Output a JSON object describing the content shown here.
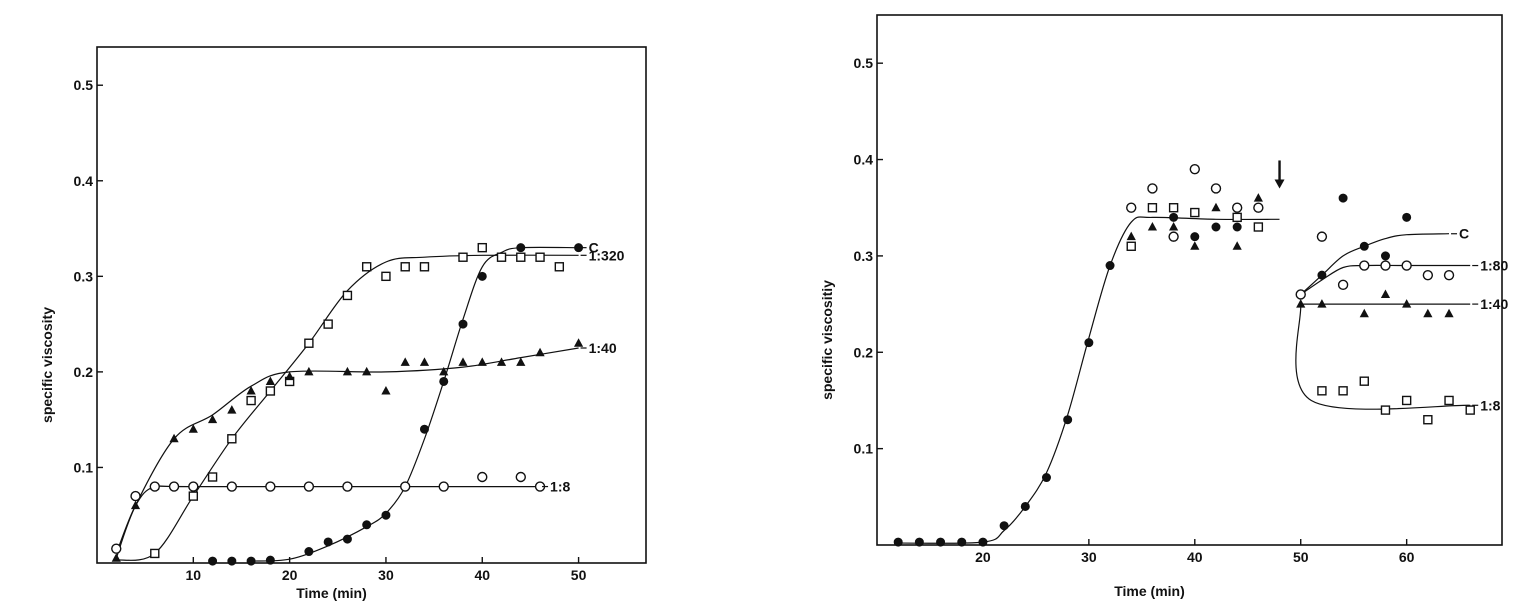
{
  "chart_data": [
    {
      "type": "scatter",
      "title": "",
      "xlabel": "Time (min)",
      "ylabel": "specific viscosity",
      "xlim": [
        0,
        57
      ],
      "ylim": [
        0,
        0.54
      ],
      "xticks": [
        10,
        20,
        30,
        40,
        50
      ],
      "xtick_labels": [
        "10",
        "20",
        "30",
        "40",
        "50"
      ],
      "yticks": [
        0.1,
        0.2,
        0.3,
        0.4,
        0.5
      ],
      "ytick_labels": [
        "0.1",
        "0.2",
        "0.3",
        "0.4",
        "0.5"
      ],
      "grid": false,
      "legend": "none",
      "series": [
        {
          "name": "C",
          "marker": "filled-circle",
          "points": [
            [
              12,
              0.002
            ],
            [
              14,
              0.002
            ],
            [
              16,
              0.002
            ],
            [
              18,
              0.003
            ],
            [
              22,
              0.012
            ],
            [
              24,
              0.022
            ],
            [
              26,
              0.025
            ],
            [
              28,
              0.04
            ],
            [
              30,
              0.05
            ],
            [
              32,
              0.08
            ],
            [
              34,
              0.14
            ],
            [
              36,
              0.19
            ],
            [
              38,
              0.25
            ],
            [
              40,
              0.3
            ],
            [
              44,
              0.33
            ],
            [
              50,
              0.33
            ]
          ],
          "curve": [
            [
              16,
              0.002
            ],
            [
              20,
              0.004
            ],
            [
              24,
              0.018
            ],
            [
              28,
              0.038
            ],
            [
              30,
              0.052
            ],
            [
              32,
              0.08
            ],
            [
              34,
              0.13
            ],
            [
              36,
              0.19
            ],
            [
              38,
              0.255
            ],
            [
              40,
              0.31
            ],
            [
              42,
              0.325
            ],
            [
              44,
              0.33
            ],
            [
              50,
              0.33
            ]
          ]
        },
        {
          "name": "1:320",
          "marker": "open-square",
          "points": [
            [
              6,
              0.01
            ],
            [
              10,
              0.07
            ],
            [
              12,
              0.09
            ],
            [
              14,
              0.13
            ],
            [
              16,
              0.17
            ],
            [
              18,
              0.18
            ],
            [
              20,
              0.19
            ],
            [
              22,
              0.23
            ],
            [
              24,
              0.25
            ],
            [
              26,
              0.28
            ],
            [
              28,
              0.31
            ],
            [
              30,
              0.3
            ],
            [
              32,
              0.31
            ],
            [
              34,
              0.31
            ],
            [
              38,
              0.32
            ],
            [
              40,
              0.33
            ],
            [
              42,
              0.32
            ],
            [
              44,
              0.32
            ],
            [
              46,
              0.32
            ],
            [
              48,
              0.31
            ]
          ],
          "curve": [
            [
              2,
              0.003
            ],
            [
              6,
              0.01
            ],
            [
              10,
              0.07
            ],
            [
              14,
              0.13
            ],
            [
              18,
              0.18
            ],
            [
              22,
              0.23
            ],
            [
              26,
              0.285
            ],
            [
              30,
              0.315
            ],
            [
              34,
              0.32
            ],
            [
              40,
              0.322
            ],
            [
              50,
              0.322
            ]
          ]
        },
        {
          "name": "1:40",
          "marker": "filled-triangle",
          "points": [
            [
              2,
              0.005
            ],
            [
              4,
              0.06
            ],
            [
              6,
              0.08
            ],
            [
              8,
              0.13
            ],
            [
              10,
              0.14
            ],
            [
              12,
              0.15
            ],
            [
              14,
              0.16
            ],
            [
              16,
              0.18
            ],
            [
              18,
              0.19
            ],
            [
              20,
              0.195
            ],
            [
              22,
              0.2
            ],
            [
              26,
              0.2
            ],
            [
              28,
              0.2
            ],
            [
              30,
              0.18
            ],
            [
              32,
              0.21
            ],
            [
              34,
              0.21
            ],
            [
              36,
              0.2
            ],
            [
              38,
              0.21
            ],
            [
              40,
              0.21
            ],
            [
              42,
              0.21
            ],
            [
              44,
              0.21
            ],
            [
              46,
              0.22
            ],
            [
              50,
              0.23
            ]
          ],
          "curve": [
            [
              2,
              0.005
            ],
            [
              4,
              0.06
            ],
            [
              8,
              0.13
            ],
            [
              12,
              0.155
            ],
            [
              16,
              0.185
            ],
            [
              20,
              0.2
            ],
            [
              30,
              0.2
            ],
            [
              38,
              0.205
            ],
            [
              44,
              0.215
            ],
            [
              50,
              0.225
            ]
          ]
        },
        {
          "name": "1:8",
          "marker": "open-circle",
          "points": [
            [
              2,
              0.015
            ],
            [
              4,
              0.07
            ],
            [
              6,
              0.08
            ],
            [
              8,
              0.08
            ],
            [
              10,
              0.08
            ],
            [
              14,
              0.08
            ],
            [
              18,
              0.08
            ],
            [
              22,
              0.08
            ],
            [
              26,
              0.08
            ],
            [
              32,
              0.08
            ],
            [
              36,
              0.08
            ],
            [
              40,
              0.09
            ],
            [
              44,
              0.09
            ],
            [
              46,
              0.08
            ]
          ],
          "curve": [
            [
              2,
              0.01
            ],
            [
              4,
              0.06
            ],
            [
              6,
              0.08
            ],
            [
              10,
              0.08
            ],
            [
              46,
              0.08
            ]
          ]
        }
      ]
    },
    {
      "type": "scatter",
      "title": "",
      "xlabel": "Time (min)",
      "ylabel": "specific viscositiy",
      "xlim": [
        10,
        69
      ],
      "ylim": [
        0,
        0.55
      ],
      "xticks": [
        20,
        30,
        40,
        50,
        60
      ],
      "xtick_labels": [
        "20",
        "30",
        "40",
        "50",
        "60"
      ],
      "yticks": [
        0.1,
        0.2,
        0.3,
        0.4,
        0.5
      ],
      "ytick_labels": [
        "0.1",
        "0.2",
        "0.3",
        "0.4",
        "0.5"
      ],
      "grid": false,
      "legend": "none",
      "annotations": [
        {
          "type": "arrow-down",
          "x": 48,
          "y": 0.37
        }
      ],
      "series": [
        {
          "name": "",
          "marker": "filled-circle",
          "points": [
            [
              12,
              0.003
            ],
            [
              14,
              0.003
            ],
            [
              16,
              0.003
            ],
            [
              18,
              0.003
            ],
            [
              20,
              0.003
            ],
            [
              22,
              0.02
            ],
            [
              24,
              0.04
            ],
            [
              26,
              0.07
            ],
            [
              28,
              0.13
            ],
            [
              30,
              0.21
            ],
            [
              32,
              0.29
            ],
            [
              38,
              0.34
            ],
            [
              40,
              0.32
            ],
            [
              42,
              0.33
            ],
            [
              44,
              0.33
            ]
          ],
          "curve": [
            [
              12,
              0.002
            ],
            [
              20,
              0.003
            ],
            [
              22,
              0.015
            ],
            [
              24,
              0.04
            ],
            [
              26,
              0.075
            ],
            [
              28,
              0.135
            ],
            [
              30,
              0.215
            ],
            [
              32,
              0.29
            ],
            [
              34,
              0.335
            ],
            [
              36,
              0.34
            ],
            [
              42,
              0.338
            ],
            [
              48,
              0.338
            ]
          ]
        },
        {
          "name": "",
          "marker": "open-circle",
          "points": [
            [
              34,
              0.35
            ],
            [
              36,
              0.37
            ],
            [
              38,
              0.32
            ],
            [
              40,
              0.39
            ],
            [
              42,
              0.37
            ],
            [
              44,
              0.35
            ],
            [
              46,
              0.35
            ]
          ],
          "curve": []
        },
        {
          "name": "",
          "marker": "open-square",
          "points": [
            [
              34,
              0.31
            ],
            [
              36,
              0.35
            ],
            [
              38,
              0.35
            ],
            [
              40,
              0.345
            ],
            [
              44,
              0.34
            ],
            [
              46,
              0.33
            ]
          ],
          "curve": []
        },
        {
          "name": "",
          "marker": "filled-triangle",
          "points": [
            [
              34,
              0.32
            ],
            [
              36,
              0.33
            ],
            [
              38,
              0.33
            ],
            [
              40,
              0.31
            ],
            [
              42,
              0.35
            ],
            [
              44,
              0.31
            ],
            [
              46,
              0.36
            ]
          ],
          "curve": []
        },
        {
          "name": "C",
          "marker": "filled-circle",
          "points": [
            [
              50,
              0.26
            ],
            [
              52,
              0.28
            ],
            [
              54,
              0.36
            ],
            [
              56,
              0.31
            ],
            [
              58,
              0.3
            ],
            [
              60,
              0.34
            ]
          ],
          "curve": [
            [
              50,
              0.26
            ],
            [
              52,
              0.28
            ],
            [
              54,
              0.3
            ],
            [
              56,
              0.31
            ],
            [
              58,
              0.318
            ],
            [
              60,
              0.322
            ],
            [
              64,
              0.323
            ]
          ]
        },
        {
          "name": "1:80",
          "marker": "open-circle",
          "points": [
            [
              50,
              0.26
            ],
            [
              52,
              0.32
            ],
            [
              54,
              0.27
            ],
            [
              56,
              0.29
            ],
            [
              58,
              0.29
            ],
            [
              60,
              0.29
            ],
            [
              62,
              0.28
            ],
            [
              64,
              0.28
            ]
          ],
          "curve": [
            [
              50,
              0.26
            ],
            [
              52,
              0.275
            ],
            [
              54,
              0.288
            ],
            [
              56,
              0.29
            ],
            [
              60,
              0.29
            ],
            [
              66,
              0.29
            ]
          ]
        },
        {
          "name": "1:40",
          "marker": "filled-triangle",
          "points": [
            [
              50,
              0.25
            ],
            [
              52,
              0.25
            ],
            [
              56,
              0.24
            ],
            [
              58,
              0.26
            ],
            [
              60,
              0.25
            ],
            [
              62,
              0.24
            ],
            [
              64,
              0.24
            ]
          ],
          "curve": [
            [
              50,
              0.25
            ],
            [
              52,
              0.25
            ],
            [
              66,
              0.25
            ]
          ]
        },
        {
          "name": "1:8",
          "marker": "open-square",
          "points": [
            [
              52,
              0.16
            ],
            [
              54,
              0.16
            ],
            [
              56,
              0.17
            ],
            [
              58,
              0.14
            ],
            [
              60,
              0.15
            ],
            [
              62,
              0.13
            ],
            [
              64,
              0.15
            ],
            [
              66,
              0.14
            ]
          ],
          "curve": [
            [
              50,
              0.25
            ],
            [
              51,
              0.15
            ],
            [
              66,
              0.145
            ]
          ]
        }
      ]
    }
  ]
}
